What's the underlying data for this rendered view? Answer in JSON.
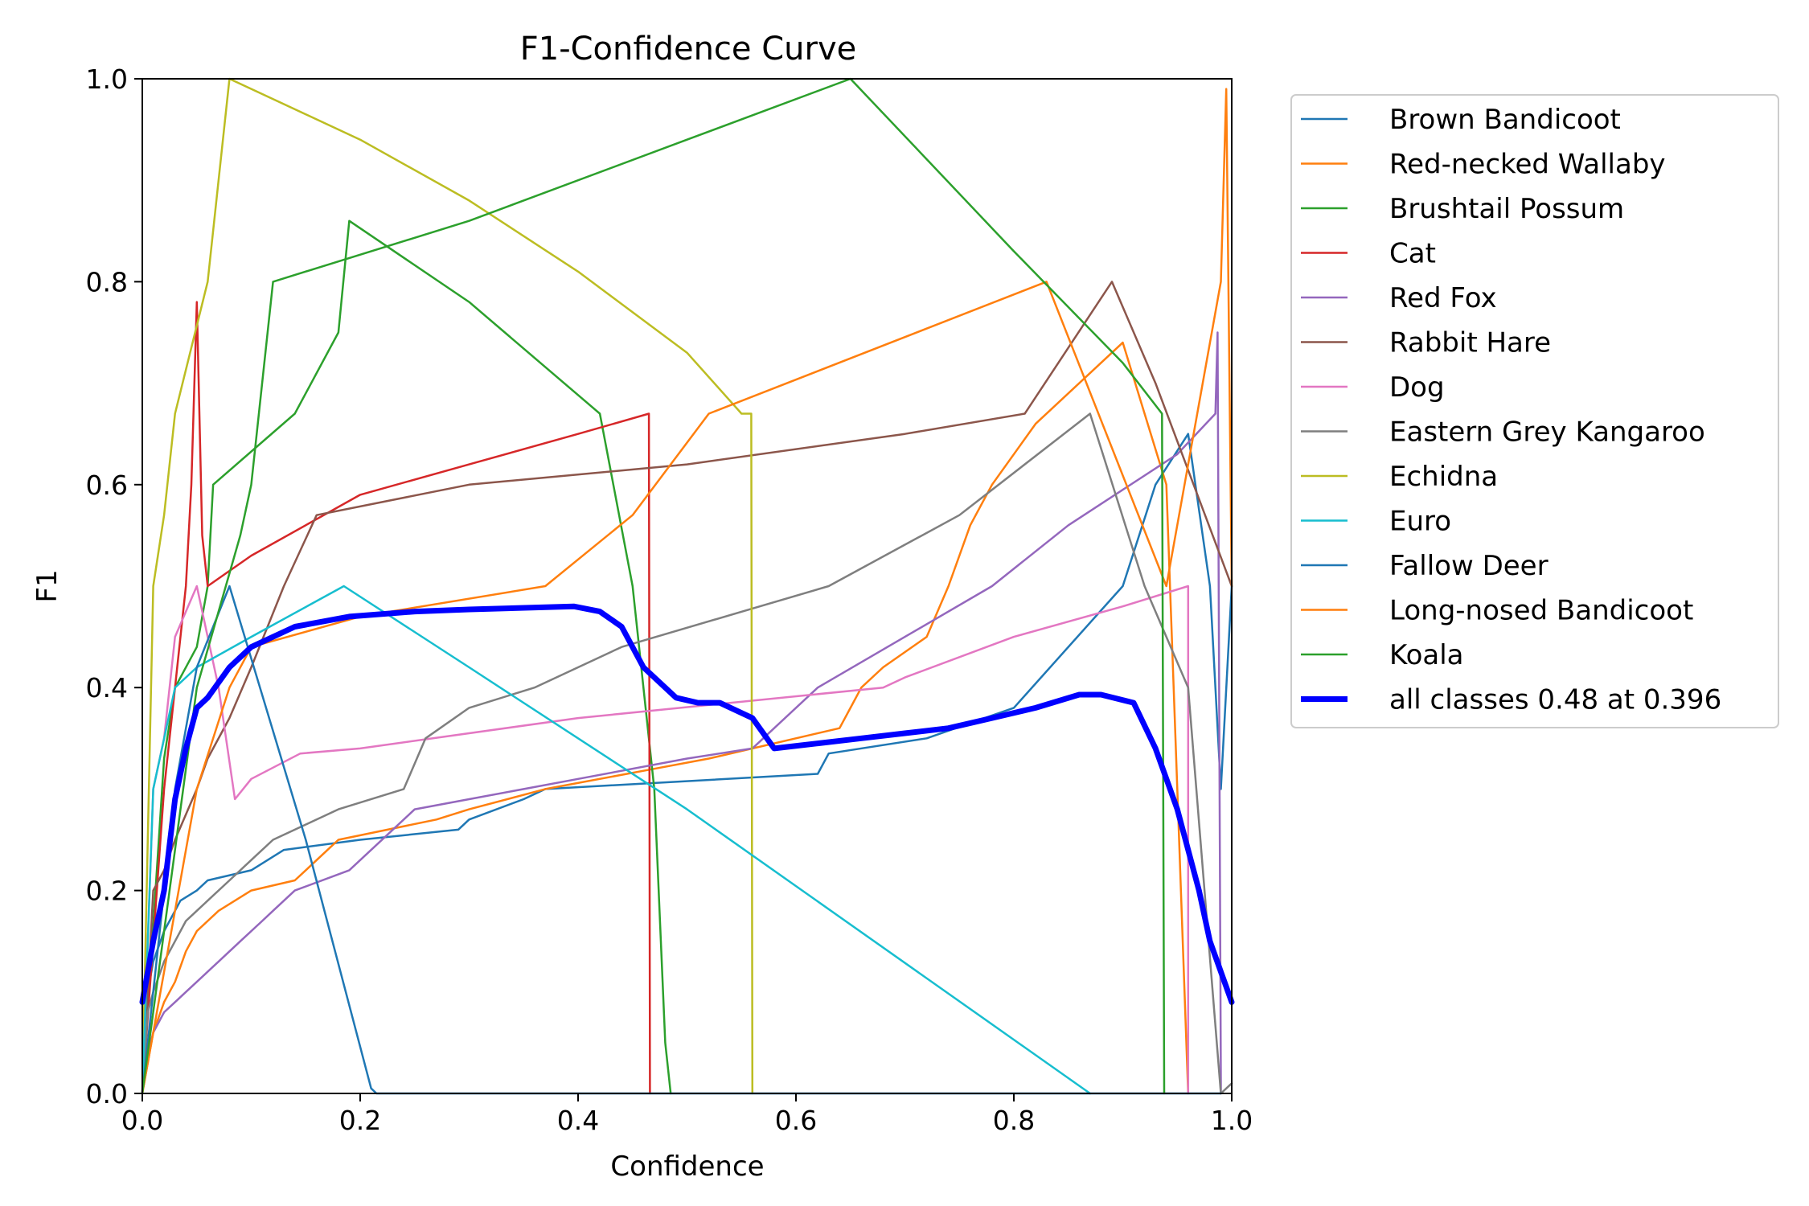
{
  "chart_data": {
    "type": "line",
    "title": "F1-Confidence Curve",
    "xlabel": "Confidence",
    "ylabel": "F1",
    "xlim": [
      0.0,
      1.0
    ],
    "ylim": [
      0.0,
      1.0
    ],
    "xticks": [
      "0.0",
      "0.2",
      "0.4",
      "0.6",
      "0.8",
      "1.0"
    ],
    "yticks": [
      "0.0",
      "0.2",
      "0.4",
      "0.6",
      "0.8",
      "1.0"
    ],
    "grid": false,
    "legend_placement": "outside-right-top",
    "series": [
      {
        "name": "Brown Bandicoot",
        "color": "#1f77b4",
        "x": [
          0,
          0.005,
          0.01,
          0.02,
          0.03,
          0.035,
          0.05,
          0.06,
          0.1,
          0.13,
          0.2,
          0.29,
          0.3,
          0.35,
          0.37,
          0.62,
          0.63,
          0.72,
          0.8,
          0.9,
          0.93,
          0.96,
          0.98,
          0.99,
          1.0
        ],
        "y": [
          0,
          0.1,
          0.13,
          0.16,
          0.18,
          0.19,
          0.2,
          0.21,
          0.22,
          0.24,
          0.25,
          0.26,
          0.27,
          0.29,
          0.3,
          0.315,
          0.335,
          0.35,
          0.38,
          0.5,
          0.6,
          0.65,
          0.5,
          0.3,
          0.5
        ]
      },
      {
        "name": "Red-necked Wallaby",
        "color": "#ff7f0e",
        "x": [
          0,
          0.01,
          0.02,
          0.03,
          0.04,
          0.05,
          0.06,
          0.07,
          0.1,
          0.14,
          0.15,
          0.17,
          0.18,
          0.27,
          0.3,
          0.37,
          0.47,
          0.52,
          0.64,
          0.65,
          0.66,
          0.68,
          0.72,
          0.74,
          0.76,
          0.78,
          0.82,
          0.9,
          0.94,
          0.95,
          0.96
        ],
        "y": [
          0,
          0.06,
          0.09,
          0.11,
          0.14,
          0.16,
          0.17,
          0.18,
          0.2,
          0.21,
          0.22,
          0.24,
          0.25,
          0.27,
          0.28,
          0.3,
          0.32,
          0.33,
          0.36,
          0.38,
          0.4,
          0.42,
          0.45,
          0.5,
          0.56,
          0.6,
          0.66,
          0.74,
          0.6,
          0.3,
          0
        ]
      },
      {
        "name": "Brushtail Possum",
        "color": "#2ca02c",
        "x": [
          0,
          0.02,
          0.03,
          0.05,
          0.06,
          0.065,
          0.14,
          0.18,
          0.19,
          0.3,
          0.42,
          0.45,
          0.47,
          0.48,
          0.485
        ],
        "y": [
          0,
          0.33,
          0.4,
          0.44,
          0.5,
          0.6,
          0.67,
          0.75,
          0.86,
          0.78,
          0.67,
          0.5,
          0.3,
          0.05,
          0
        ]
      },
      {
        "name": "Cat",
        "color": "#d62728",
        "x": [
          0,
          0.02,
          0.03,
          0.04,
          0.045,
          0.05,
          0.055,
          0.06,
          0.1,
          0.2,
          0.3,
          0.4,
          0.465,
          0.466
        ],
        "y": [
          0,
          0.3,
          0.4,
          0.5,
          0.6,
          0.78,
          0.55,
          0.5,
          0.53,
          0.59,
          0.62,
          0.65,
          0.67,
          0
        ]
      },
      {
        "name": "Red Fox",
        "color": "#9467bd",
        "x": [
          0,
          0.005,
          0.01,
          0.02,
          0.03,
          0.04,
          0.05,
          0.06,
          0.07,
          0.09,
          0.11,
          0.12,
          0.14,
          0.19,
          0.25,
          0.3,
          0.4,
          0.5,
          0.56,
          0.62,
          0.7,
          0.78,
          0.85,
          0.95,
          0.985,
          0.987,
          0.99,
          0.99
        ],
        "y": [
          0,
          0.04,
          0.06,
          0.08,
          0.09,
          0.1,
          0.11,
          0.12,
          0.13,
          0.15,
          0.17,
          0.18,
          0.2,
          0.22,
          0.28,
          0.29,
          0.31,
          0.33,
          0.34,
          0.4,
          0.45,
          0.5,
          0.56,
          0.63,
          0.67,
          0.75,
          0.01,
          0
        ]
      },
      {
        "name": "Rabbit Hare",
        "color": "#8c564b",
        "x": [
          0,
          0.01,
          0.02,
          0.03,
          0.05,
          0.06,
          0.08,
          0.1,
          0.13,
          0.16,
          0.3,
          0.5,
          0.7,
          0.81,
          0.89,
          0.93,
          1.0
        ],
        "y": [
          0,
          0.2,
          0.22,
          0.25,
          0.3,
          0.33,
          0.37,
          0.42,
          0.5,
          0.57,
          0.6,
          0.62,
          0.65,
          0.67,
          0.8,
          0.7,
          0.5
        ]
      },
      {
        "name": "Dog",
        "color": "#e377c2",
        "x": [
          0,
          0.01,
          0.02,
          0.03,
          0.05,
          0.06,
          0.07,
          0.085,
          0.1,
          0.145,
          0.2,
          0.4,
          0.68,
          0.7,
          0.8,
          0.9,
          0.96,
          0.96
        ],
        "y": [
          0,
          0.3,
          0.35,
          0.45,
          0.5,
          0.45,
          0.4,
          0.29,
          0.31,
          0.335,
          0.34,
          0.37,
          0.4,
          0.41,
          0.45,
          0.48,
          0.5,
          0
        ]
      },
      {
        "name": "Eastern Grey Kangaroo",
        "color": "#7f7f7f",
        "x": [
          0,
          0.005,
          0.01,
          0.02,
          0.03,
          0.04,
          0.05,
          0.06,
          0.08,
          0.1,
          0.12,
          0.16,
          0.18,
          0.24,
          0.26,
          0.3,
          0.36,
          0.44,
          0.63,
          0.75,
          0.87,
          0.92,
          0.96,
          0.99,
          1.0
        ],
        "y": [
          0,
          0.08,
          0.1,
          0.13,
          0.15,
          0.17,
          0.18,
          0.19,
          0.21,
          0.23,
          0.25,
          0.27,
          0.28,
          0.3,
          0.35,
          0.38,
          0.4,
          0.44,
          0.5,
          0.57,
          0.67,
          0.5,
          0.4,
          0,
          0.01
        ]
      },
      {
        "name": "Echidna",
        "color": "#bcbd22",
        "x": [
          0,
          0.005,
          0.01,
          0.02,
          0.03,
          0.06,
          0.08,
          0.2,
          0.3,
          0.4,
          0.5,
          0.55,
          0.559,
          0.56
        ],
        "y": [
          0,
          0.25,
          0.5,
          0.57,
          0.67,
          0.8,
          1.0,
          0.94,
          0.88,
          0.81,
          0.73,
          0.67,
          0.67,
          0
        ]
      },
      {
        "name": "Euro",
        "color": "#17becf",
        "x": [
          0,
          0.01,
          0.03,
          0.05,
          0.1,
          0.185,
          0.3,
          0.5,
          0.87
        ],
        "y": [
          0,
          0.3,
          0.4,
          0.42,
          0.45,
          0.5,
          0.42,
          0.28,
          0
        ]
      },
      {
        "name": "Fallow Deer",
        "color": "#1f77b4",
        "x": [
          0,
          0.03,
          0.05,
          0.08,
          0.15,
          0.21,
          0.215,
          0.99
        ],
        "y": [
          0,
          0.3,
          0.42,
          0.5,
          0.25,
          0.005,
          0,
          0
        ]
      },
      {
        "name": "Long-nosed Bandicoot",
        "color": "#ff7f0e",
        "x": [
          0,
          0.05,
          0.08,
          0.1,
          0.2,
          0.37,
          0.45,
          0.52,
          0.83,
          0.94,
          0.99,
          0.995,
          1.0
        ],
        "y": [
          0,
          0.3,
          0.4,
          0.44,
          0.47,
          0.5,
          0.57,
          0.67,
          0.8,
          0.5,
          0.8,
          0.99,
          0.5
        ]
      },
      {
        "name": "Koala",
        "color": "#2ca02c",
        "x": [
          0,
          0.05,
          0.09,
          0.1,
          0.12,
          0.3,
          0.5,
          0.65,
          0.8,
          0.9,
          0.936,
          0.938
        ],
        "y": [
          0,
          0.4,
          0.55,
          0.6,
          0.8,
          0.86,
          0.94,
          1.0,
          0.83,
          0.72,
          0.67,
          0
        ]
      },
      {
        "name": "all classes 0.48 at 0.396",
        "color": "#0000ff",
        "width": 7,
        "x": [
          0,
          0.01,
          0.02,
          0.03,
          0.04,
          0.05,
          0.06,
          0.08,
          0.1,
          0.14,
          0.19,
          0.25,
          0.3,
          0.396,
          0.42,
          0.44,
          0.46,
          0.49,
          0.51,
          0.53,
          0.56,
          0.58,
          0.62,
          0.66,
          0.7,
          0.74,
          0.78,
          0.82,
          0.86,
          0.88,
          0.91,
          0.93,
          0.95,
          0.97,
          0.98,
          1.0
        ],
        "y": [
          0.09,
          0.15,
          0.2,
          0.29,
          0.34,
          0.38,
          0.39,
          0.42,
          0.44,
          0.46,
          0.47,
          0.475,
          0.477,
          0.48,
          0.475,
          0.46,
          0.42,
          0.39,
          0.385,
          0.385,
          0.37,
          0.34,
          0.345,
          0.35,
          0.355,
          0.36,
          0.37,
          0.38,
          0.393,
          0.393,
          0.385,
          0.34,
          0.28,
          0.2,
          0.15,
          0.09
        ]
      }
    ]
  }
}
